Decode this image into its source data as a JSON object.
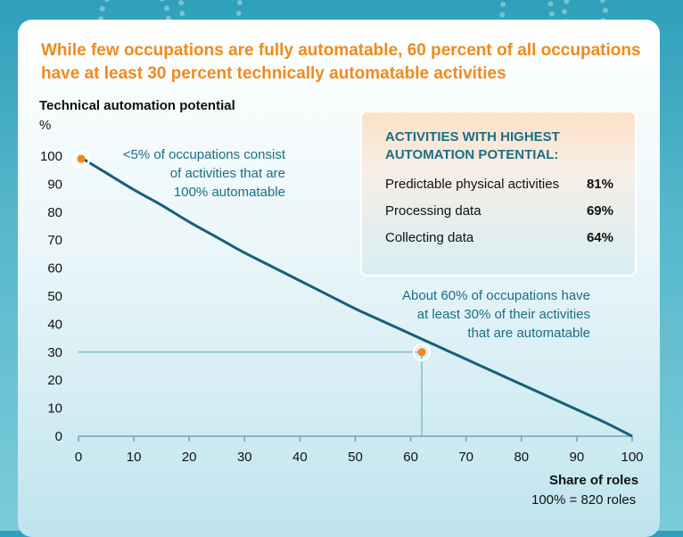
{
  "title_line1": "While few occupations are fully automatable, 60 percent of all occupations",
  "title_line2": "have at least 30 percent technically automatable activities",
  "chart_data": {
    "type": "line",
    "ylabel": "Technical automation potential",
    "yunit": "%",
    "xlabel": "Share of roles",
    "xnote": "100% = 820 roles",
    "xlim": [
      0,
      100
    ],
    "ylim": [
      0,
      100
    ],
    "x_ticks": [
      "0",
      "10",
      "20",
      "30",
      "40",
      "50",
      "60",
      "70",
      "80",
      "90",
      "100"
    ],
    "y_ticks": [
      "0",
      "10",
      "20",
      "30",
      "40",
      "50",
      "60",
      "70",
      "80",
      "90",
      "100"
    ],
    "series": [
      {
        "x": [
          0,
          5,
          10,
          15,
          20,
          25,
          30,
          35,
          40,
          45,
          50,
          55,
          60,
          65,
          70,
          75,
          80,
          85,
          90,
          95,
          100
        ],
        "values": [
          100,
          94,
          88,
          82.5,
          76.5,
          71,
          65.5,
          60.5,
          55.5,
          50.5,
          45.5,
          41,
          36.5,
          32,
          27.5,
          23,
          18.5,
          14,
          9.5,
          5,
          0
        ],
        "color": "#175f76"
      }
    ],
    "highlight_points": [
      {
        "x": 0.5,
        "y": 99
      },
      {
        "x": 62,
        "y": 30
      }
    ],
    "reference_lines": {
      "x": 62,
      "y": 30
    },
    "annotation1": [
      "<5% of occupations consist",
      "of activities that are",
      "100% automatable"
    ],
    "annotation2": [
      "About 60% of occupations have",
      "at least 30% of their activities",
      "that are automatable"
    ],
    "colors": {
      "line": "#175f76",
      "dot": "#f08a1c",
      "annotation": "#1a6f86",
      "guide": "#5aa3b5"
    }
  },
  "box": {
    "title_line1": "ACTIVITIES WITH HIGHEST",
    "title_line2": "AUTOMATION POTENTIAL:",
    "rows": [
      {
        "label": "Predictable physical activities",
        "value": "81%"
      },
      {
        "label": "Processing data",
        "value": "69%"
      },
      {
        "label": "Collecting data",
        "value": "64%"
      }
    ]
  }
}
